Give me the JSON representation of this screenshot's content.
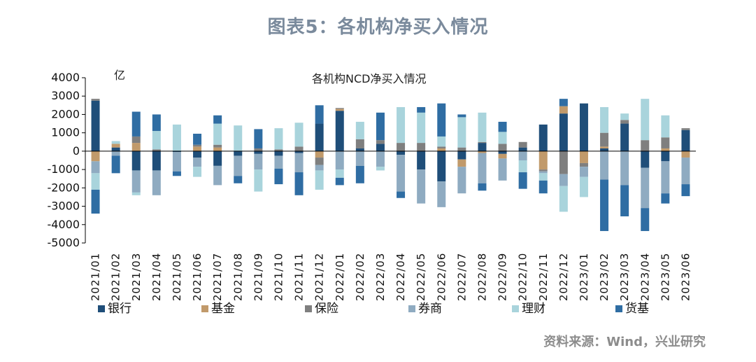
{
  "title": "图表5：各机构净买入情况",
  "source": "资料来源：Wind，兴业研究",
  "chart_data": {
    "type": "bar",
    "stacked": true,
    "title": "各机构NCD净买入情况",
    "unit": "亿",
    "ylim": [
      -5000,
      4000
    ],
    "yticks": [
      -5000,
      -4000,
      -3000,
      -2000,
      -1000,
      0,
      1000,
      2000,
      3000,
      4000
    ],
    "legend_position": "bottom",
    "categories": [
      "2021/01",
      "2021/02",
      "2021/03",
      "2021/04",
      "2021/05",
      "2021/06",
      "2021/07",
      "2021/08",
      "2021/09",
      "2021/10",
      "2021/11",
      "2021/12",
      "2022/01",
      "2022/02",
      "2022/03",
      "2022/04",
      "2022/05",
      "2022/06",
      "2022/07",
      "2022/08",
      "2022/09",
      "2022/10",
      "2022/11",
      "2022/12",
      "2023/01",
      "2023/02",
      "2023/03",
      "2023/04",
      "2023/05",
      "2023/06"
    ],
    "series": [
      {
        "name": "银行",
        "color": "#1f4e79",
        "values": [
          2750,
          200,
          -1050,
          -1050,
          -50,
          -350,
          -800,
          -250,
          -150,
          -250,
          -100,
          1500,
          2200,
          150,
          400,
          -200,
          -1000,
          -1650,
          -450,
          450,
          -150,
          200,
          1450,
          2050,
          2600,
          150,
          1500,
          -900,
          -550,
          1150
        ]
      },
      {
        "name": "基金",
        "color": "#c19a6b",
        "values": [
          -550,
          200,
          450,
          0,
          0,
          250,
          200,
          0,
          0,
          0,
          0,
          -350,
          100,
          0,
          0,
          0,
          0,
          150,
          -400,
          -100,
          -250,
          0,
          -1000,
          400,
          -650,
          100,
          0,
          0,
          150,
          -350
        ]
      },
      {
        "name": "保险",
        "color": "#7f7f7f",
        "values": [
          100,
          0,
          350,
          100,
          0,
          100,
          150,
          0,
          150,
          100,
          250,
          -400,
          50,
          500,
          200,
          450,
          450,
          100,
          200,
          50,
          400,
          300,
          -100,
          -1250,
          -200,
          750,
          200,
          600,
          600,
          100
        ]
      },
      {
        "name": "券商",
        "color": "#8fabc1",
        "values": [
          -650,
          -250,
          -1200,
          -1350,
          -1050,
          -500,
          -1050,
          -1100,
          -850,
          -700,
          -1050,
          -300,
          -1000,
          -800,
          -850,
          -2000,
          -1850,
          -1400,
          -1450,
          -1650,
          -1200,
          -500,
          -100,
          -650,
          -550,
          -1550,
          -1850,
          -2200,
          -1750,
          -1450
        ]
      },
      {
        "name": "理财",
        "color": "#a9d4dc",
        "values": [
          -900,
          150,
          -150,
          1000,
          1450,
          -550,
          1150,
          1400,
          -1200,
          1150,
          1300,
          -1050,
          -450,
          950,
          -200,
          1950,
          1650,
          550,
          1650,
          1600,
          650,
          -650,
          -400,
          -1400,
          -1100,
          1400,
          350,
          2250,
          1200,
          0
        ]
      },
      {
        "name": "货基",
        "color": "#2f6da3",
        "values": [
          -1300,
          -950,
          1350,
          900,
          -250,
          600,
          450,
          -400,
          1050,
          -850,
          -1250,
          1000,
          -400,
          -950,
          1500,
          -350,
          300,
          1800,
          150,
          -400,
          550,
          -900,
          -700,
          400,
          0,
          -2800,
          -1700,
          -1250,
          -550,
          -650
        ]
      }
    ]
  }
}
